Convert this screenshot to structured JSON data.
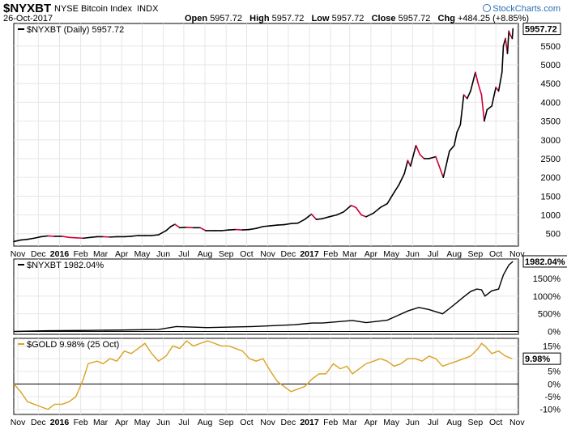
{
  "header": {
    "symbol": "$NYXBT",
    "name": "NYSE Bitcoin Index",
    "exchange": "INDX",
    "date": "26-Oct-2017",
    "open_label": "Open",
    "open": "5957.72",
    "high_label": "High",
    "high": "5957.72",
    "low_label": "Low",
    "low": "5957.72",
    "close_label": "Close",
    "close": "5957.72",
    "chg_label": "Chg",
    "chg": "+484.25 (+8.85%)",
    "brand": "StockCharts.com"
  },
  "colors": {
    "price_line": "#000000",
    "down_line": "#cc0033",
    "gold_line": "#d9a21f",
    "grid": "#e6e6e6",
    "frame": "#000000"
  },
  "chart_data": [
    {
      "type": "line",
      "title": "$NYXBT (Daily) 5957.72",
      "x_ticks": [
        "Nov",
        "Dec",
        "2016",
        "Feb",
        "Mar",
        "Apr",
        "May",
        "Jun",
        "Jul",
        "Aug",
        "Sep",
        "Oct",
        "Nov",
        "Dec",
        "2017",
        "Feb",
        "Mar",
        "Apr",
        "May",
        "Jun",
        "Jul",
        "Aug",
        "Sep",
        "Oct",
        "Nov"
      ],
      "y_ticks": [
        "500",
        "1000",
        "1500",
        "2000",
        "2500",
        "3000",
        "3500",
        "4000",
        "4500",
        "5000",
        "5500"
      ],
      "ylim": [
        170,
        6100
      ],
      "last_value_label": "5957.72",
      "series": [
        {
          "name": "$NYXBT (Daily)",
          "x": [
            "2015-10-26",
            "2015-11-05",
            "2015-11-15",
            "2015-11-25",
            "2015-12-05",
            "2015-12-15",
            "2015-12-25",
            "2016-01-05",
            "2016-01-15",
            "2016-01-25",
            "2016-02-05",
            "2016-02-15",
            "2016-02-25",
            "2016-03-05",
            "2016-03-15",
            "2016-03-25",
            "2016-04-05",
            "2016-04-15",
            "2016-04-25",
            "2016-05-05",
            "2016-05-15",
            "2016-05-25",
            "2016-06-05",
            "2016-06-12",
            "2016-06-18",
            "2016-06-25",
            "2016-07-05",
            "2016-07-15",
            "2016-07-25",
            "2016-08-02",
            "2016-08-15",
            "2016-08-25",
            "2016-09-05",
            "2016-09-15",
            "2016-09-25",
            "2016-10-05",
            "2016-10-15",
            "2016-10-25",
            "2016-11-05",
            "2016-11-15",
            "2016-11-25",
            "2016-12-05",
            "2016-12-15",
            "2016-12-25",
            "2017-01-04",
            "2017-01-11",
            "2017-01-20",
            "2017-01-30",
            "2017-02-10",
            "2017-02-20",
            "2017-03-03",
            "2017-03-10",
            "2017-03-18",
            "2017-03-25",
            "2017-04-05",
            "2017-04-15",
            "2017-04-25",
            "2017-05-05",
            "2017-05-12",
            "2017-05-20",
            "2017-05-25",
            "2017-05-29",
            "2017-06-06",
            "2017-06-12",
            "2017-06-18",
            "2017-06-25",
            "2017-07-05",
            "2017-07-10",
            "2017-07-16",
            "2017-07-20",
            "2017-07-25",
            "2017-08-01",
            "2017-08-05",
            "2017-08-10",
            "2017-08-15",
            "2017-08-20",
            "2017-08-25",
            "2017-09-01",
            "2017-09-05",
            "2017-09-10",
            "2017-09-14",
            "2017-09-18",
            "2017-09-25",
            "2017-10-01",
            "2017-10-05",
            "2017-10-10",
            "2017-10-12",
            "2017-10-15",
            "2017-10-18",
            "2017-10-20",
            "2017-10-22",
            "2017-10-25",
            "2017-10-26"
          ],
          "values": [
            290,
            330,
            350,
            380,
            420,
            440,
            430,
            430,
            400,
            390,
            380,
            400,
            420,
            420,
            410,
            420,
            420,
            430,
            450,
            450,
            450,
            470,
            580,
            690,
            750,
            660,
            670,
            660,
            660,
            580,
            580,
            580,
            600,
            610,
            600,
            610,
            640,
            690,
            710,
            730,
            740,
            770,
            780,
            880,
            1020,
            880,
            900,
            950,
            1000,
            1080,
            1250,
            1200,
            1000,
            950,
            1050,
            1200,
            1300,
            1600,
            1800,
            2100,
            2450,
            2300,
            2850,
            2600,
            2500,
            2500,
            2550,
            2300,
            2000,
            2300,
            2700,
            2850,
            3200,
            3400,
            4200,
            4100,
            4300,
            4800,
            4500,
            4200,
            3500,
            3800,
            3900,
            4400,
            4300,
            4800,
            5500,
            5700,
            5300,
            5900,
            5800,
            5700,
            5957.72
          ]
        }
      ]
    },
    {
      "type": "line",
      "title": "$NYXBT 1982.04%",
      "y_ticks": [
        "0%",
        "500%",
        "1000%",
        "1500%"
      ],
      "ylim": [
        -80,
        2050
      ],
      "last_value_label": "1982.04%",
      "series": [
        {
          "name": "$NYXBT",
          "x": [
            "2015-10-26",
            "2015-12-15",
            "2016-02-10",
            "2016-04-01",
            "2016-05-25",
            "2016-06-20",
            "2016-08-05",
            "2016-10-10",
            "2016-12-10",
            "2017-01-05",
            "2017-01-20",
            "2017-03-05",
            "2017-03-25",
            "2017-04-25",
            "2017-05-10",
            "2017-05-25",
            "2017-06-10",
            "2017-06-25",
            "2017-07-15",
            "2017-07-25",
            "2017-08-05",
            "2017-08-15",
            "2017-08-25",
            "2017-09-03",
            "2017-09-10",
            "2017-09-15",
            "2017-09-25",
            "2017-10-05",
            "2017-10-12",
            "2017-10-20",
            "2017-10-26"
          ],
          "values": [
            0,
            20,
            30,
            40,
            55,
            140,
            110,
            140,
            190,
            240,
            240,
            310,
            250,
            320,
            450,
            580,
            680,
            620,
            500,
            650,
            820,
            980,
            1130,
            1200,
            1180,
            1000,
            1150,
            1200,
            1600,
            1880,
            1982.04
          ]
        }
      ]
    },
    {
      "type": "line",
      "title": "$GOLD 9.98% (25 Oct)",
      "y_ticks": [
        "15%",
        "10%",
        "5%",
        "0%",
        "-5%",
        "-10%"
      ],
      "ylim": [
        -12,
        18
      ],
      "last_value_label": "9.98%",
      "x_ticks": [
        "Nov",
        "Dec",
        "2016",
        "Feb",
        "Mar",
        "Apr",
        "May",
        "Jun",
        "Jul",
        "Aug",
        "Sep",
        "Oct",
        "Nov",
        "Dec",
        "2017",
        "Feb",
        "Mar",
        "Apr",
        "May",
        "Jun",
        "Jul",
        "Aug",
        "Sep",
        "Oct",
        "Nov"
      ],
      "series": [
        {
          "name": "$GOLD",
          "x": [
            "2015-10-26",
            "2015-11-05",
            "2015-11-15",
            "2015-11-25",
            "2015-12-05",
            "2015-12-15",
            "2015-12-25",
            "2016-01-05",
            "2016-01-15",
            "2016-01-25",
            "2016-02-05",
            "2016-02-12",
            "2016-02-25",
            "2016-03-05",
            "2016-03-15",
            "2016-03-25",
            "2016-04-05",
            "2016-04-15",
            "2016-04-25",
            "2016-05-05",
            "2016-05-15",
            "2016-05-25",
            "2016-06-05",
            "2016-06-15",
            "2016-06-25",
            "2016-07-05",
            "2016-07-15",
            "2016-07-25",
            "2016-08-05",
            "2016-08-15",
            "2016-08-25",
            "2016-09-05",
            "2016-09-15",
            "2016-09-25",
            "2016-10-05",
            "2016-10-15",
            "2016-10-25",
            "2016-11-05",
            "2016-11-15",
            "2016-11-25",
            "2016-12-05",
            "2016-12-15",
            "2016-12-25",
            "2017-01-05",
            "2017-01-15",
            "2017-01-25",
            "2017-02-05",
            "2017-02-15",
            "2017-02-25",
            "2017-03-05",
            "2017-03-15",
            "2017-03-25",
            "2017-04-05",
            "2017-04-15",
            "2017-04-25",
            "2017-05-05",
            "2017-05-15",
            "2017-05-25",
            "2017-06-05",
            "2017-06-15",
            "2017-06-25",
            "2017-07-05",
            "2017-07-15",
            "2017-07-25",
            "2017-08-05",
            "2017-08-15",
            "2017-08-25",
            "2017-09-05",
            "2017-09-10",
            "2017-09-15",
            "2017-09-25",
            "2017-10-05",
            "2017-10-15",
            "2017-10-25"
          ],
          "values": [
            0,
            -3,
            -7,
            -8,
            -9,
            -10,
            -8,
            -8,
            -7,
            -5,
            2,
            8,
            9,
            8,
            10,
            9,
            13,
            12,
            14,
            16,
            12,
            9,
            11,
            15,
            14,
            17,
            15,
            16,
            17,
            16,
            15,
            15,
            14,
            13,
            10,
            9,
            10,
            5,
            1,
            -1,
            -3,
            -2,
            -1,
            2,
            4,
            4,
            8,
            6,
            7,
            4,
            6,
            8,
            9,
            10,
            9,
            7,
            8,
            10,
            10,
            9,
            11,
            10,
            7,
            8,
            9,
            10,
            11,
            14,
            16,
            15,
            12,
            13,
            11,
            9.98
          ]
        }
      ]
    }
  ]
}
